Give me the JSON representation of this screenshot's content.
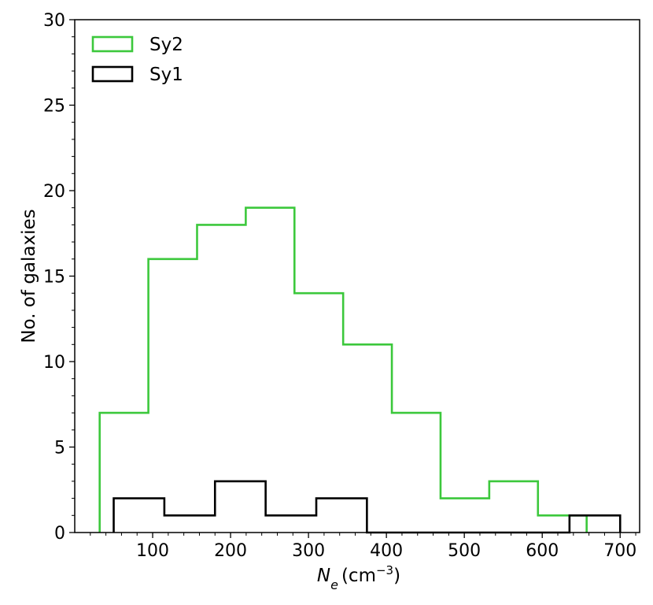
{
  "chart_data": {
    "type": "histogram",
    "xlabel_main": "N",
    "xlabel_sub": "e",
    "xlabel_unit_prefix": "(cm",
    "xlabel_unit_exp": "−3",
    "xlabel_unit_suffix": ")",
    "ylabel": "No. of galaxies",
    "xlim": [
      0,
      725
    ],
    "ylim": [
      0,
      30
    ],
    "xticks": [
      100,
      200,
      300,
      400,
      500,
      600,
      700
    ],
    "yticks": [
      0,
      5,
      10,
      15,
      20,
      25,
      30
    ],
    "legend_position": "top-left",
    "series": [
      {
        "name": "Sy2",
        "color": "#3cc83c",
        "bin_edges": [
          32,
          94.5,
          157,
          219.5,
          282,
          344.5,
          407,
          469.5,
          532,
          594.5,
          657
        ],
        "counts": [
          7,
          16,
          18,
          19,
          14,
          11,
          7,
          2,
          3,
          1
        ]
      },
      {
        "name": "Sy1",
        "color": "#000000",
        "bin_edges": [
          50,
          115,
          180,
          245,
          310,
          375,
          440,
          505,
          570,
          635,
          700
        ],
        "counts": [
          2,
          1,
          3,
          1,
          2,
          0,
          0,
          0,
          0,
          1
        ]
      }
    ]
  }
}
